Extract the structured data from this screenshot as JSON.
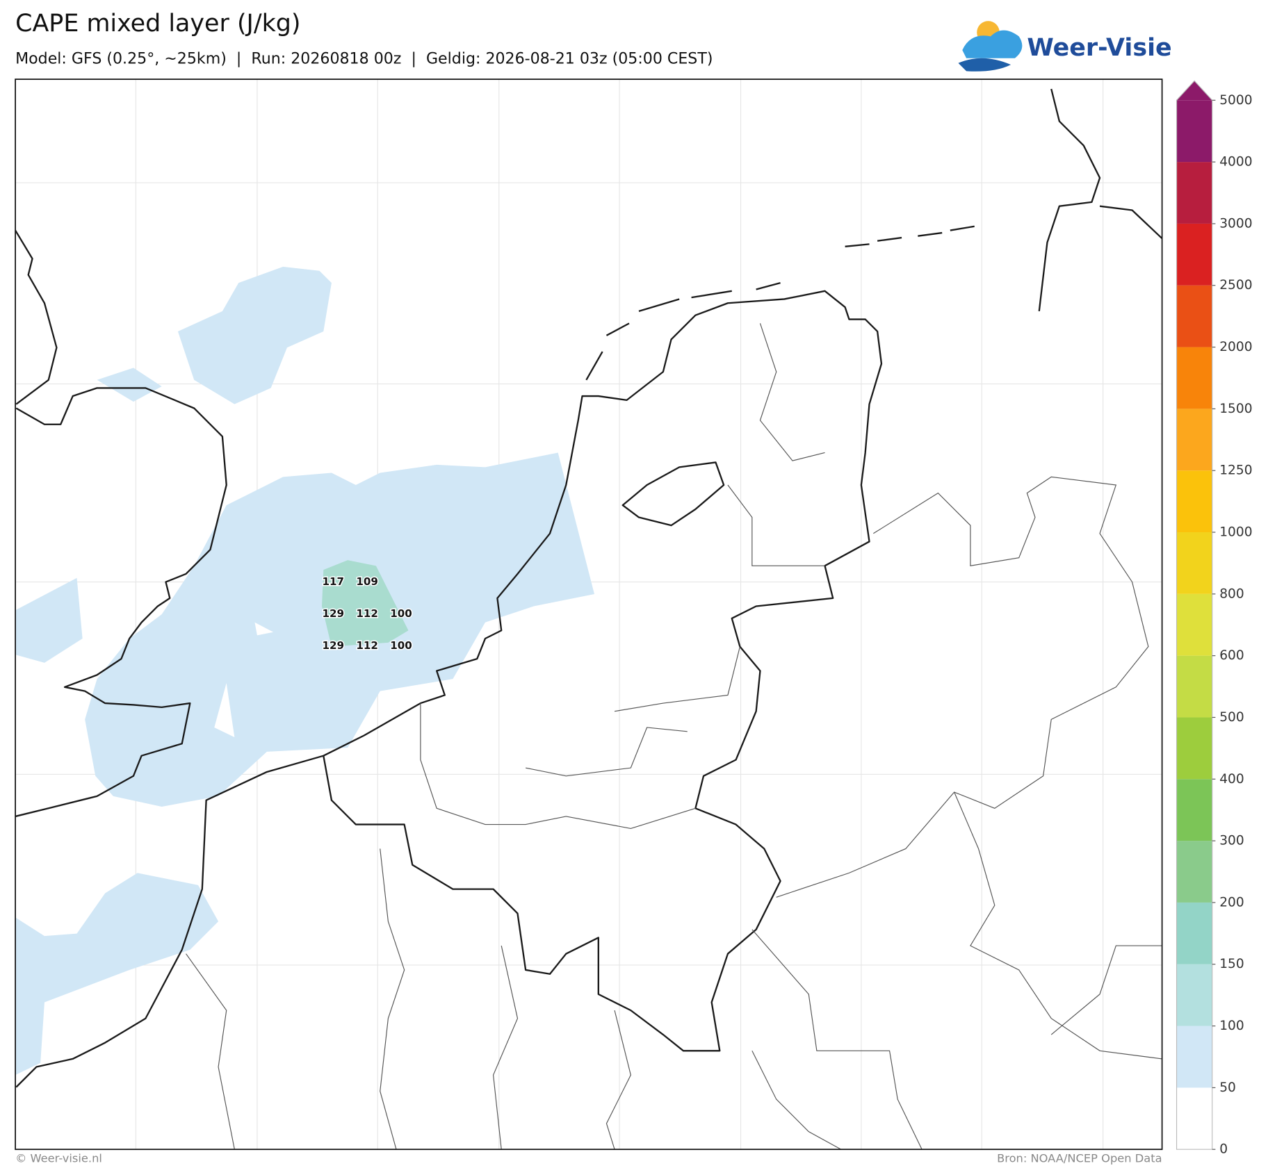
{
  "header": {
    "title": "CAPE mixed layer (J/kg)",
    "subtitle": "Model: GFS (0.25°, ~25km)  |  Run: 20260818 00z  |  Geldig: 2026-08-21 03z (05:00 CEST)",
    "logo": "Weer-Visie"
  },
  "map": {
    "point_values": [
      [
        117,
        109
      ],
      [
        129,
        112,
        100
      ],
      [
        129,
        112,
        100
      ]
    ]
  },
  "colorbar": {
    "levels": [
      0,
      50,
      100,
      150,
      200,
      300,
      400,
      500,
      600,
      800,
      1000,
      1250,
      1500,
      2000,
      2500,
      3000,
      4000,
      5000
    ],
    "colors": [
      "#ffffff",
      "#d1e7f6",
      "#b3e0df",
      "#93d4c7",
      "#8acb8b",
      "#7cc557",
      "#9dcd3d",
      "#c4dc45",
      "#dfe03b",
      "#f2d31c",
      "#fbc20b",
      "#fca71d",
      "#f8840a",
      "#ea5015",
      "#da2121",
      "#b71e3e",
      "#8c1a69"
    ]
  },
  "footer": {
    "left": "© Weer-visie.nl",
    "right": "Bron: NOAA/NCEP Open Data"
  }
}
